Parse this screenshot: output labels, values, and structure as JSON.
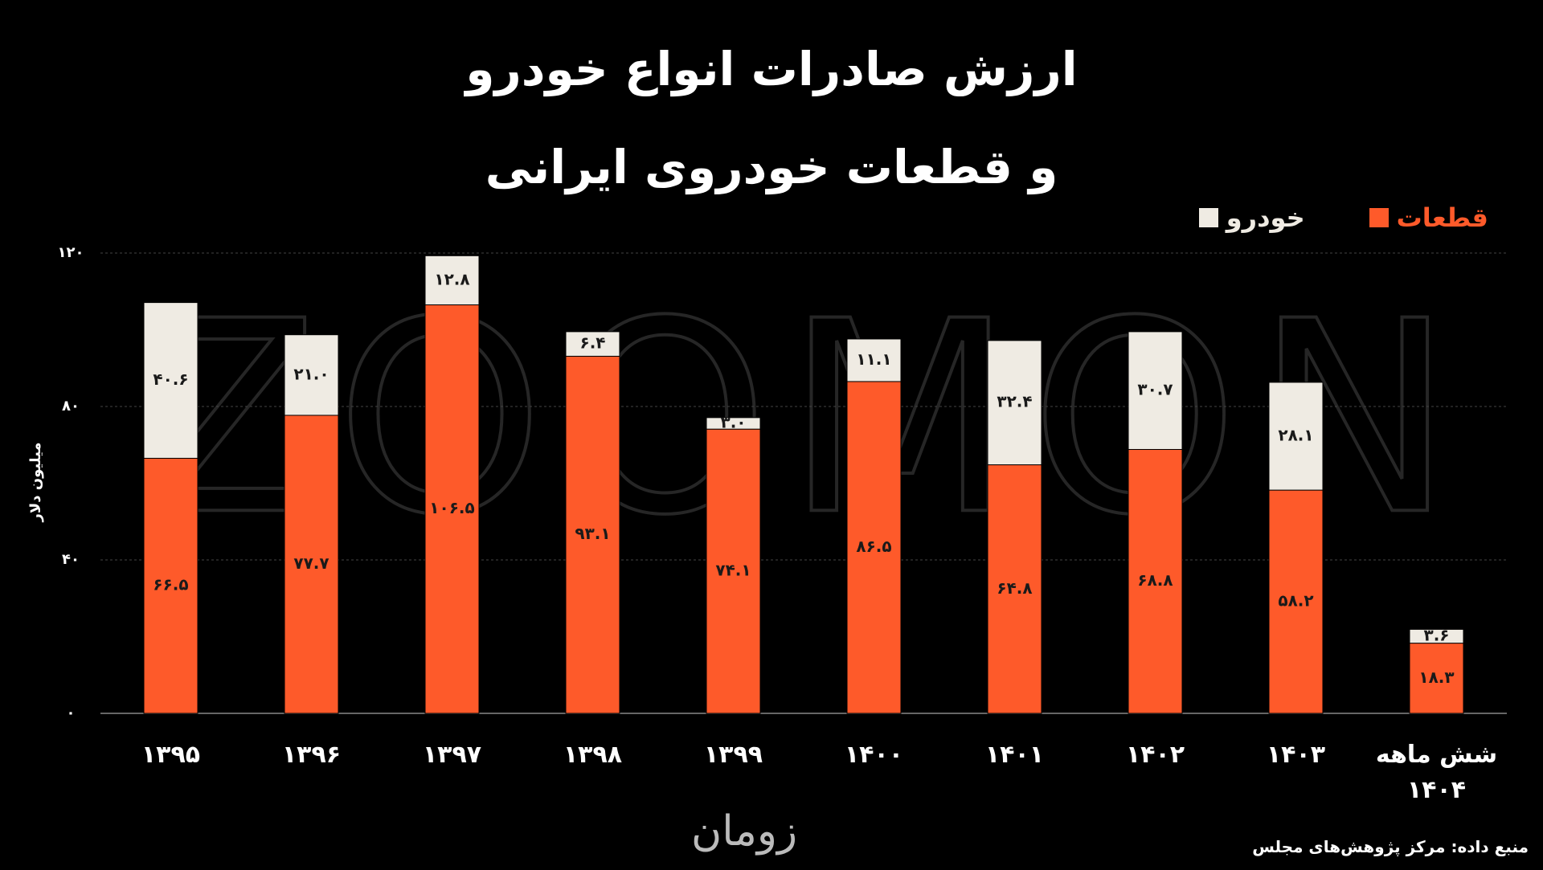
{
  "chart_data": {
    "type": "stacked_bar",
    "title": "ارزش صادرات انواع خودرو",
    "subtitle": "و قطعات خودروی ایرانی",
    "ylabel": "میلیون دلار",
    "watermark": "ZOOMON",
    "logo": "زومان",
    "source": "منبع داده: مرکز پژوهش‌های مجلس",
    "categories": [
      "۱۳۹۵",
      "۱۳۹۶",
      "۱۳۹۷",
      "۱۳۹۸",
      "۱۳۹۹",
      "۱۴۰۰",
      "۱۴۰۱",
      "۱۴۰۲",
      "۱۴۰۳",
      "شش ماهه ۱۴۰۴"
    ],
    "series": [
      {
        "name": "قطعات",
        "color": "#fe5a2a",
        "values": [
          66.5,
          77.7,
          106.5,
          93.1,
          74.1,
          86.5,
          64.8,
          68.8,
          58.2,
          18.3
        ],
        "value_labels": [
          "۶۶.۵",
          "۷۷.۷",
          "۱۰۶.۵",
          "۹۳.۱",
          "۷۴.۱",
          "۸۶.۵",
          "۶۴.۸",
          "۶۸.۸",
          "۵۸.۲",
          "۱۸.۳"
        ]
      },
      {
        "name": "خودرو",
        "color": "#efebe3",
        "values": [
          40.6,
          21.0,
          12.8,
          6.4,
          3.0,
          11.1,
          32.4,
          30.7,
          28.1,
          3.6
        ],
        "value_labels": [
          "۴۰.۶",
          "۲۱.۰",
          "۱۲.۸",
          "۶.۴",
          "۳.۰",
          "۱۱.۱",
          "۳۲.۴",
          "۳۰.۷",
          "۲۸.۱",
          "۳.۶"
        ]
      }
    ],
    "ylim": [
      0,
      120
    ],
    "yticks": [
      {
        "value": 0,
        "label": "۰"
      },
      {
        "value": 40,
        "label": "۴۰"
      },
      {
        "value": 80,
        "label": "۸۰"
      },
      {
        "value": 120,
        "label": "۱۲۰"
      }
    ],
    "grid": true
  }
}
